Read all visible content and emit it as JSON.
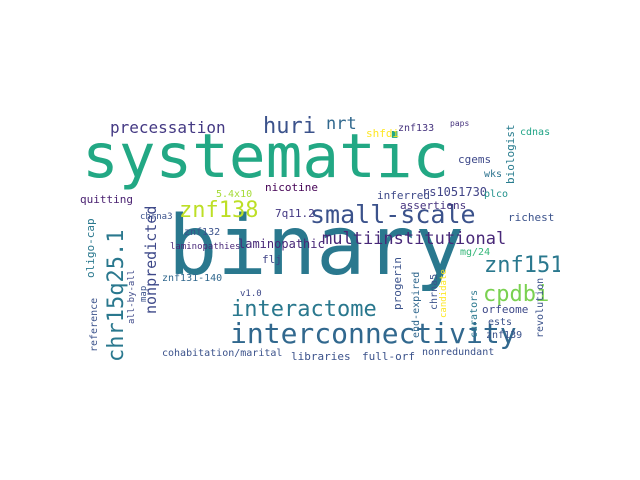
{
  "cloud": {
    "words": [
      {
        "text": "systematic",
        "color": "#22a884",
        "weight": 1.0
      },
      {
        "text": "binary",
        "color": "#2a788e",
        "weight": 0.9
      },
      {
        "text": "interconnectivity",
        "color": "#31688e",
        "weight": 0.55
      },
      {
        "text": "small-scale",
        "color": "#3b528b",
        "weight": 0.45
      },
      {
        "text": "chr15q25.1",
        "color": "#2a788e",
        "weight": 0.42
      },
      {
        "text": "interactome",
        "color": "#2a788e",
        "weight": 0.4
      },
      {
        "text": "znf138",
        "color": "#bddf26",
        "weight": 0.38
      },
      {
        "text": "znf151",
        "color": "#2a788e",
        "weight": 0.36
      },
      {
        "text": "cpdbi",
        "color": "#7ad151",
        "weight": 0.34
      },
      {
        "text": "huri",
        "color": "#3b528b",
        "weight": 0.32
      },
      {
        "text": "precessation",
        "color": "#443983",
        "weight": 0.28
      },
      {
        "text": "multiinstitutional",
        "color": "#482878",
        "weight": 0.26
      },
      {
        "text": "nonpredicted",
        "color": "#3e4989",
        "weight": 0.24
      },
      {
        "text": "nrt",
        "color": "#31688e",
        "weight": 0.22
      },
      {
        "text": "laminopathic",
        "color": "#482878",
        "weight": 0.18
      },
      {
        "text": "shfdi",
        "color": "#fde725",
        "weight": 0.16
      },
      {
        "text": "znf133",
        "color": "#46337e",
        "weight": 0.14
      },
      {
        "text": "paps",
        "color": "#46337e",
        "weight": 0.12
      },
      {
        "text": "biologist",
        "color": "#287c8e",
        "weight": 0.13
      },
      {
        "text": "cdnas",
        "color": "#20a486",
        "weight": 0.12
      },
      {
        "text": "cgems",
        "color": "#3e4989",
        "weight": 0.12
      },
      {
        "text": "wks",
        "color": "#2c728e",
        "weight": 0.12
      },
      {
        "text": "rs1051730",
        "color": "#414487",
        "weight": 0.15
      },
      {
        "text": "inferred",
        "color": "#3e4989",
        "weight": 0.13
      },
      {
        "text": "plco",
        "color": "#21918c",
        "weight": 0.12
      },
      {
        "text": "nicotine",
        "color": "#440154",
        "weight": 0.14
      },
      {
        "text": "quitting",
        "color": "#481f70",
        "weight": 0.13
      },
      {
        "text": "5.4x10",
        "color": "#a5db36",
        "weight": 0.12
      },
      {
        "text": "7q11.2",
        "color": "#443983",
        "weight": 0.13
      },
      {
        "text": "chrna3",
        "color": "#3b528b",
        "weight": 0.11
      },
      {
        "text": "assertions",
        "color": "#46337e",
        "weight": 0.13
      },
      {
        "text": "richest",
        "color": "#3b528b",
        "weight": 0.12
      },
      {
        "text": "znf132",
        "color": "#3b528b",
        "weight": 0.12
      },
      {
        "text": "laminopathies",
        "color": "#482878",
        "weight": 0.1
      },
      {
        "text": "flj",
        "color": "#414487",
        "weight": 0.13
      },
      {
        "text": "progerin",
        "color": "#3b528b",
        "weight": 0.13
      },
      {
        "text": "end-expired",
        "color": "#31688e",
        "weight": 0.12
      },
      {
        "text": "chrna5",
        "color": "#3b528b",
        "weight": 0.12
      },
      {
        "text": "candidate",
        "color": "#fde725",
        "weight": 0.11
      },
      {
        "text": "mg/24",
        "color": "#35b779",
        "weight": 0.12
      },
      {
        "text": "orfeome",
        "color": "#3e4989",
        "weight": 0.13
      },
      {
        "text": "oligo-cap",
        "color": "#2a788e",
        "weight": 0.13
      },
      {
        "text": "reference",
        "color": "#3b528b",
        "weight": 0.12
      },
      {
        "text": "all-by-all",
        "color": "#3e4989",
        "weight": 0.11
      },
      {
        "text": "map",
        "color": "#3b528b",
        "weight": 0.1
      },
      {
        "text": "v1.0",
        "color": "#3e4989",
        "weight": 0.1
      },
      {
        "text": "znf131-140",
        "color": "#31688e",
        "weight": 0.12
      },
      {
        "text": "cohabitation/marital",
        "color": "#3b528b",
        "weight": 0.13
      },
      {
        "text": "libraries",
        "color": "#3b528b",
        "weight": 0.13
      },
      {
        "text": "full-orf",
        "color": "#3b528b",
        "weight": 0.13
      },
      {
        "text": "nonredundant",
        "color": "#3b528b",
        "weight": 0.12
      },
      {
        "text": "znf139",
        "color": "#3b528b",
        "weight": 0.12
      },
      {
        "text": "curators",
        "color": "#2a788e",
        "weight": 0.13
      },
      {
        "text": "revolution",
        "color": "#3b528b",
        "weight": 0.12
      },
      {
        "text": "ests",
        "color": "#3b528b",
        "weight": 0.12
      }
    ]
  }
}
